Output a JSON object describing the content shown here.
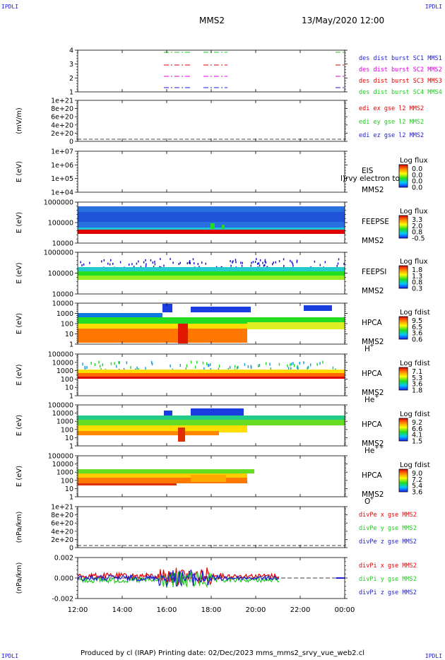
{
  "corners": {
    "tl": "IPDLI",
    "tr": "IPDLI",
    "bl": "IPDLI",
    "br": "IPDLI"
  },
  "header": {
    "spacecraft": "MMS2",
    "datetime": "13/May/2020 12:00"
  },
  "footer": {
    "text": "Produced by cl (IRAP)   Printing date: 02/Dec/2023   mms_mms2_srvy_vue_web2.cl"
  },
  "colors": {
    "red": "#e60000",
    "green": "#22cc22",
    "blue": "#1c1cd0",
    "magenta": "#e000e0"
  },
  "chart_data": {
    "type": "line",
    "x": {
      "ticks": [
        "12:00",
        "14:00",
        "16:00",
        "18:00",
        "20:00",
        "22:00",
        "00:00"
      ],
      "range_hours": [
        12,
        24
      ]
    },
    "panels": [
      {
        "id": "burst",
        "type": "line",
        "ylabel": "",
        "yticks": [
          "4",
          "3",
          "2",
          "1"
        ],
        "legend": [
          {
            "text": "des dist burst SC1 MMS1",
            "color": "#1c1cd0"
          },
          {
            "text": "des dist burst SC2 MMS2",
            "color": "#e000e0"
          },
          {
            "text": "des dist burst SC3 MMS3",
            "color": "#e60000"
          },
          {
            "text": "des dist burst SC4 MMS4",
            "color": "#22cc22"
          }
        ]
      },
      {
        "id": "edi",
        "type": "line",
        "ylabel": "(mV/m)",
        "yticks": [
          "1e+21",
          "8e+20",
          "6e+20",
          "4e+20",
          "2e+20",
          "0"
        ],
        "legend": [
          {
            "text": "edi ex gse l2 MMS2",
            "color": "#e60000"
          },
          {
            "text": "edi ey gse l2 MMS2",
            "color": "#22cc22"
          },
          {
            "text": "edi ez gse l2 MMS2",
            "color": "#1c1cd0"
          }
        ]
      },
      {
        "id": "eis",
        "type": "heatmap",
        "ylabel": "E (eV)",
        "yticks": [
          "1e+07",
          "1e+06",
          "1e+05",
          "1e+04"
        ],
        "labels": [
          "EIS",
          "MMS2"
        ],
        "overlay_text": "l)rvy electron to",
        "colorbar": {
          "title": "Log flux",
          "ticks": [
            "0.0",
            "0.0",
            "0.0",
            "0.0"
          ]
        }
      },
      {
        "id": "feepse",
        "type": "heatmap",
        "ylabel": "E (eV)",
        "yticks": [
          "1000000",
          "100000",
          "10000"
        ],
        "labels": [
          "FEEPSE",
          "MMS2"
        ],
        "colorbar": {
          "title": "Log flux",
          "ticks": [
            "3.3",
            "2.0",
            "0.8",
            "-0.5"
          ]
        }
      },
      {
        "id": "feepsi",
        "type": "heatmap",
        "ylabel": "E (eV)",
        "yticks": [
          "1000000",
          "100000",
          "10000"
        ],
        "labels": [
          "FEEPSI",
          "MMS2"
        ],
        "colorbar": {
          "title": "Log flux",
          "ticks": [
            "1.8",
            "1.3",
            "0.8",
            "0.3"
          ]
        }
      },
      {
        "id": "hpca_h",
        "type": "heatmap",
        "ylabel": "E (eV)",
        "yticks": [
          "10000",
          "1000",
          "100",
          "10",
          "1"
        ],
        "labels": [
          "HPCA",
          "MMS2"
        ],
        "species": "H",
        "charge": "+",
        "colorbar": {
          "title": "Log fdist",
          "ticks": [
            "9.5",
            "6.5",
            "3.6",
            "0.6"
          ]
        }
      },
      {
        "id": "hpca_he1",
        "type": "heatmap",
        "ylabel": "E (eV)",
        "yticks": [
          "100000",
          "10000",
          "1000",
          "100",
          "10",
          "1"
        ],
        "labels": [
          "HPCA",
          "MMS2"
        ],
        "species": "He",
        "charge": "+",
        "colorbar": {
          "title": "Log fdist",
          "ticks": [
            "7.1",
            "5.3",
            "3.6",
            "1.8"
          ]
        }
      },
      {
        "id": "hpca_he2",
        "type": "heatmap",
        "ylabel": "E (eV)",
        "yticks": [
          "100000",
          "10000",
          "1000",
          "100",
          "10",
          "1"
        ],
        "labels": [
          "HPCA",
          "MMS2"
        ],
        "species": "He",
        "charge": "++",
        "colorbar": {
          "title": "Log fdist",
          "ticks": [
            "9.2",
            "6.6",
            "4.1",
            "1.5"
          ]
        }
      },
      {
        "id": "hpca_o",
        "type": "heatmap",
        "ylabel": "E (eV)",
        "yticks": [
          "100000",
          "10000",
          "1000",
          "100",
          "10",
          "1"
        ],
        "labels": [
          "HPCA",
          "MMS2"
        ],
        "species": "O",
        "charge": "+",
        "colorbar": {
          "title": "Log fdist",
          "ticks": [
            "9.0",
            "7.2",
            "5.4",
            "3.6"
          ]
        }
      },
      {
        "id": "divpe",
        "type": "line",
        "ylabel": "(nPa/km)",
        "yticks": [
          "1e+21",
          "8e+20",
          "6e+20",
          "4e+20",
          "2e+20",
          "0"
        ],
        "legend": [
          {
            "text": "divPe x gse MMS2",
            "color": "#e60000"
          },
          {
            "text": "divPe y gse MMS2",
            "color": "#22cc22"
          },
          {
            "text": "divPe z gse MMS2",
            "color": "#1c1cd0"
          }
        ]
      },
      {
        "id": "divpi",
        "type": "line",
        "ylabel": "(nPa/km)",
        "yticks": [
          "0.002",
          "0.000",
          "-0.002"
        ],
        "legend": [
          {
            "text": "divPi x gse MMS2",
            "color": "#e60000"
          },
          {
            "text": "divPi y gse MMS2",
            "color": "#22cc22"
          },
          {
            "text": "divPi z gse MMS2",
            "color": "#1c1cd0"
          }
        ]
      }
    ]
  }
}
